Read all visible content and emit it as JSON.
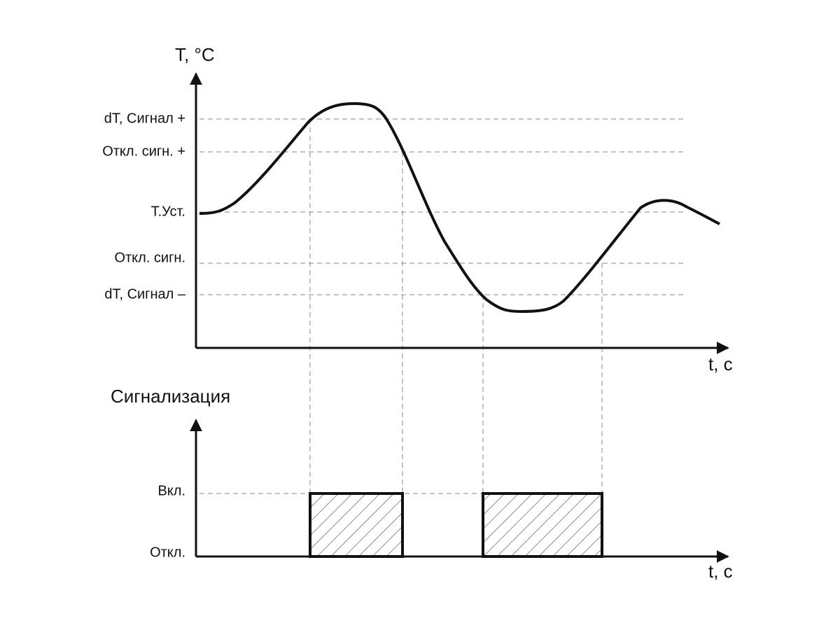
{
  "top": {
    "y_axis_label": "T, °C",
    "x_axis_label": "t, с",
    "levels": [
      "dT, Сигнал +",
      "Откл. сигн. +",
      "Т.Уст.",
      "Откл. сигн.",
      "dT, Сигнал –"
    ]
  },
  "bottom": {
    "title": "Сигнализация",
    "x_axis_label": "t, с",
    "levels": [
      "Вкл.",
      "Откл."
    ]
  }
}
